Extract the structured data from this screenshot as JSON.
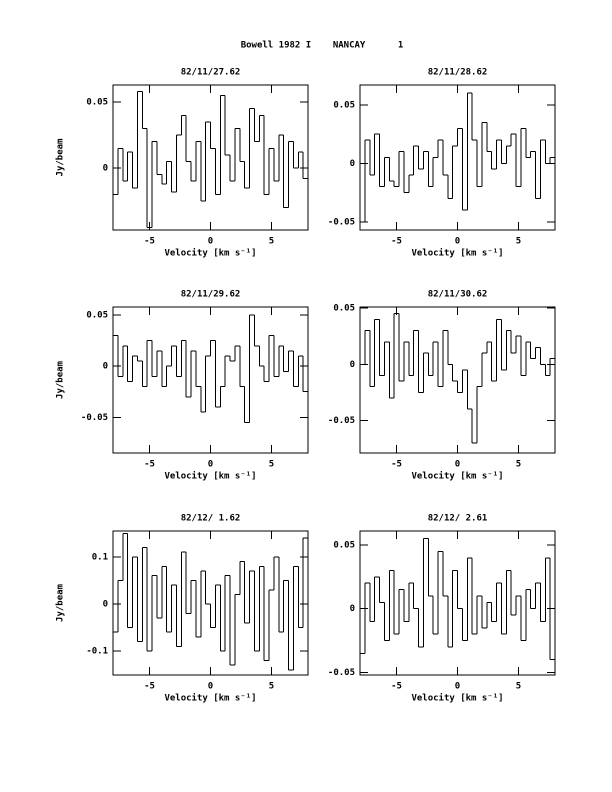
{
  "page_title": "Bowell 1982 I    NANCAY      1",
  "chart_data": [
    {
      "type": "line",
      "drawstyle": "steps-mid",
      "color": "#000000",
      "title": "82/11/27.62",
      "xlabel": "Velocity [km s⁻¹]",
      "ylabel": "Jy/beam",
      "xlim": [
        -8,
        8
      ],
      "xticks": [
        -5,
        0,
        5
      ],
      "ylim": [
        -0.047,
        0.063
      ],
      "yticks": [
        0,
        0.05
      ],
      "x": [
        -7.8,
        -7.4,
        -7.0,
        -6.6,
        -6.2,
        -5.8,
        -5.4,
        -5.0,
        -4.6,
        -4.2,
        -3.8,
        -3.4,
        -3.0,
        -2.6,
        -2.2,
        -1.8,
        -1.4,
        -1.0,
        -0.6,
        -0.2,
        0.2,
        0.6,
        1.0,
        1.4,
        1.8,
        2.2,
        2.6,
        3.0,
        3.4,
        3.8,
        4.2,
        4.6,
        5.0,
        5.4,
        5.8,
        6.2,
        6.6,
        7.0,
        7.4,
        7.8
      ],
      "values": [
        -0.02,
        0.015,
        -0.01,
        0.012,
        -0.015,
        0.058,
        0.03,
        -0.045,
        0.02,
        -0.005,
        -0.012,
        0.005,
        -0.018,
        0.025,
        0.04,
        0.005,
        -0.01,
        0.02,
        -0.025,
        0.035,
        0.015,
        -0.02,
        0.055,
        0.01,
        -0.01,
        0.03,
        0.005,
        -0.015,
        0.045,
        0.02,
        0.04,
        -0.02,
        0.015,
        -0.01,
        0.025,
        -0.03,
        0.02,
        0.0,
        0.012,
        -0.008
      ]
    },
    {
      "type": "line",
      "drawstyle": "steps-mid",
      "color": "#000000",
      "title": "82/11/28.62",
      "xlabel": "Velocity [km s⁻¹]",
      "xlim": [
        -8,
        8
      ],
      "xticks": [
        -5,
        0,
        5
      ],
      "ylim": [
        -0.057,
        0.067
      ],
      "yticks": [
        -0.05,
        0,
        0.05
      ],
      "x": [
        -7.8,
        -7.4,
        -7.0,
        -6.6,
        -6.2,
        -5.8,
        -5.4,
        -5.0,
        -4.6,
        -4.2,
        -3.8,
        -3.4,
        -3.0,
        -2.6,
        -2.2,
        -1.8,
        -1.4,
        -1.0,
        -0.6,
        -0.2,
        0.2,
        0.6,
        1.0,
        1.4,
        1.8,
        2.2,
        2.6,
        3.0,
        3.4,
        3.8,
        4.2,
        4.6,
        5.0,
        5.4,
        5.8,
        6.2,
        6.6,
        7.0,
        7.4,
        7.8
      ],
      "values": [
        -0.05,
        0.02,
        -0.01,
        0.025,
        -0.02,
        0.005,
        -0.015,
        -0.02,
        0.01,
        -0.025,
        -0.01,
        0.015,
        -0.005,
        0.01,
        -0.02,
        0.005,
        0.02,
        -0.01,
        -0.03,
        0.015,
        0.03,
        -0.04,
        0.06,
        0.02,
        -0.02,
        0.035,
        0.01,
        -0.005,
        0.02,
        0.0,
        0.015,
        0.025,
        -0.02,
        0.03,
        0.005,
        0.01,
        -0.03,
        0.02,
        0.0,
        0.005
      ]
    },
    {
      "type": "line",
      "drawstyle": "steps-mid",
      "color": "#000000",
      "title": "82/11/29.62",
      "xlabel": "Velocity [km s⁻¹]",
      "ylabel": "Jy/beam",
      "xlim": [
        -8,
        8
      ],
      "xticks": [
        -5,
        0,
        5
      ],
      "ylim": [
        -0.085,
        0.058
      ],
      "yticks": [
        -0.05,
        0,
        0.05
      ],
      "x": [
        -7.8,
        -7.4,
        -7.0,
        -6.6,
        -6.2,
        -5.8,
        -5.4,
        -5.0,
        -4.6,
        -4.2,
        -3.8,
        -3.4,
        -3.0,
        -2.6,
        -2.2,
        -1.8,
        -1.4,
        -1.0,
        -0.6,
        -0.2,
        0.2,
        0.6,
        1.0,
        1.4,
        1.8,
        2.2,
        2.6,
        3.0,
        3.4,
        3.8,
        4.2,
        4.6,
        5.0,
        5.4,
        5.8,
        6.2,
        6.6,
        7.0,
        7.4,
        7.8
      ],
      "values": [
        0.03,
        -0.01,
        0.02,
        -0.015,
        0.01,
        0.005,
        -0.02,
        0.025,
        -0.01,
        0.015,
        -0.02,
        0.0,
        0.02,
        -0.01,
        0.025,
        -0.03,
        0.015,
        -0.02,
        -0.045,
        0.01,
        0.025,
        -0.04,
        -0.02,
        0.01,
        0.005,
        0.02,
        -0.02,
        -0.055,
        0.05,
        0.02,
        0.0,
        -0.015,
        0.03,
        -0.01,
        0.02,
        -0.005,
        0.015,
        -0.02,
        0.01,
        -0.025
      ]
    },
    {
      "type": "line",
      "drawstyle": "steps-mid",
      "color": "#000000",
      "title": "82/11/30.62",
      "xlabel": "Velocity [km s⁻¹]",
      "xlim": [
        -8,
        8
      ],
      "xticks": [
        -5,
        0,
        5
      ],
      "ylim": [
        -0.079,
        0.051
      ],
      "yticks": [
        -0.05,
        0,
        0.05
      ],
      "x": [
        -7.8,
        -7.4,
        -7.0,
        -6.6,
        -6.2,
        -5.8,
        -5.4,
        -5.0,
        -4.6,
        -4.2,
        -3.8,
        -3.4,
        -3.0,
        -2.6,
        -2.2,
        -1.8,
        -1.4,
        -1.0,
        -0.6,
        -0.2,
        0.2,
        0.6,
        1.0,
        1.4,
        1.8,
        2.2,
        2.6,
        3.0,
        3.4,
        3.8,
        4.2,
        4.6,
        5.0,
        5.4,
        5.8,
        6.2,
        6.6,
        7.0,
        7.4,
        7.8
      ],
      "values": [
        0.0,
        0.03,
        -0.02,
        0.04,
        -0.01,
        0.02,
        -0.03,
        0.045,
        -0.015,
        0.02,
        -0.01,
        0.03,
        -0.025,
        0.01,
        -0.01,
        0.02,
        -0.02,
        0.03,
        0.0,
        -0.015,
        -0.025,
        -0.005,
        -0.04,
        -0.07,
        -0.02,
        0.01,
        0.02,
        -0.015,
        0.04,
        -0.005,
        0.03,
        0.01,
        0.025,
        -0.01,
        0.02,
        0.005,
        0.015,
        0.0,
        -0.01,
        0.005
      ]
    },
    {
      "type": "line",
      "drawstyle": "steps-mid",
      "color": "#000000",
      "title": "82/12/ 1.62",
      "xlabel": "Velocity [km s⁻¹]",
      "ylabel": "Jy/beam",
      "xlim": [
        -8,
        8
      ],
      "xticks": [
        -5,
        0,
        5
      ],
      "ylim": [
        -0.151,
        0.155
      ],
      "yticks": [
        -0.1,
        0,
        0.1
      ],
      "x": [
        -7.8,
        -7.4,
        -7.0,
        -6.6,
        -6.2,
        -5.8,
        -5.4,
        -5.0,
        -4.6,
        -4.2,
        -3.8,
        -3.4,
        -3.0,
        -2.6,
        -2.2,
        -1.8,
        -1.4,
        -1.0,
        -0.6,
        -0.2,
        0.2,
        0.6,
        1.0,
        1.4,
        1.8,
        2.2,
        2.6,
        3.0,
        3.4,
        3.8,
        4.2,
        4.6,
        5.0,
        5.4,
        5.8,
        6.2,
        6.6,
        7.0,
        7.4,
        7.8
      ],
      "values": [
        -0.06,
        0.05,
        0.15,
        -0.05,
        0.1,
        -0.08,
        0.12,
        -0.1,
        0.06,
        -0.03,
        0.08,
        -0.06,
        0.04,
        -0.09,
        0.11,
        -0.02,
        0.05,
        -0.07,
        0.07,
        0.0,
        -0.05,
        0.04,
        -0.1,
        0.06,
        -0.13,
        0.02,
        0.09,
        -0.04,
        0.07,
        -0.1,
        0.08,
        -0.12,
        0.03,
        0.1,
        -0.06,
        0.05,
        -0.14,
        0.08,
        -0.05,
        0.14
      ]
    },
    {
      "type": "line",
      "drawstyle": "steps-mid",
      "color": "#000000",
      "title": "82/12/ 2.61",
      "xlabel": "Velocity [km s⁻¹]",
      "xlim": [
        -8,
        8
      ],
      "xticks": [
        -5,
        0,
        5
      ],
      "ylim": [
        -0.052,
        0.061
      ],
      "yticks": [
        -0.05,
        0,
        0.05
      ],
      "x": [
        -7.8,
        -7.4,
        -7.0,
        -6.6,
        -6.2,
        -5.8,
        -5.4,
        -5.0,
        -4.6,
        -4.2,
        -3.8,
        -3.4,
        -3.0,
        -2.6,
        -2.2,
        -1.8,
        -1.4,
        -1.0,
        -0.6,
        -0.2,
        0.2,
        0.6,
        1.0,
        1.4,
        1.8,
        2.2,
        2.6,
        3.0,
        3.4,
        3.8,
        4.2,
        4.6,
        5.0,
        5.4,
        5.8,
        6.2,
        6.6,
        7.0,
        7.4,
        7.8
      ],
      "values": [
        -0.035,
        0.02,
        -0.01,
        0.025,
        0.005,
        -0.025,
        0.03,
        -0.02,
        0.015,
        -0.01,
        0.02,
        0.0,
        -0.03,
        0.055,
        0.01,
        -0.02,
        0.045,
        0.01,
        -0.03,
        0.03,
        0.0,
        -0.025,
        0.04,
        -0.02,
        0.01,
        -0.015,
        0.005,
        -0.01,
        0.02,
        -0.02,
        0.03,
        -0.005,
        0.01,
        -0.025,
        0.015,
        0.0,
        0.02,
        -0.01,
        0.04,
        -0.04
      ]
    }
  ]
}
